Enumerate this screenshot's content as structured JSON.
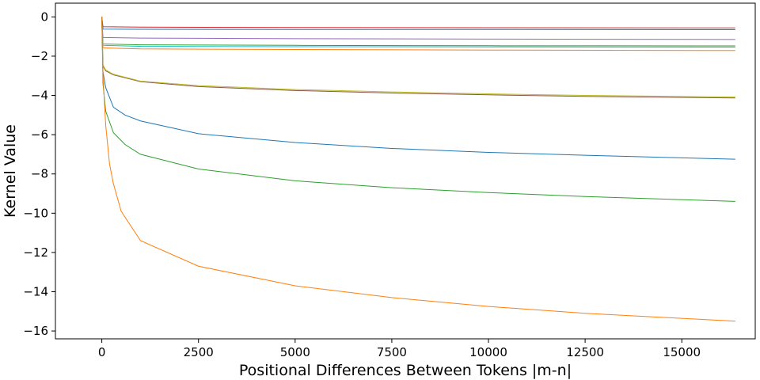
{
  "chart_data": {
    "type": "line",
    "title": "",
    "xlabel": "Positional Differences Between Tokens |m-n|",
    "ylabel": "Kernel Value",
    "xlim": [
      -1200,
      16900
    ],
    "ylim": [
      -16.4,
      0.7
    ],
    "xticks": [
      0,
      2500,
      5000,
      7500,
      10000,
      12500,
      15000
    ],
    "yticks": [
      0,
      -2,
      -4,
      -6,
      -8,
      -10,
      -12,
      -14,
      -16
    ],
    "grid": false,
    "legend": "none",
    "series": [
      {
        "color": "#d62728",
        "points": [
          [
            0,
            0
          ],
          [
            30,
            -0.5
          ],
          [
            1000,
            -0.52
          ],
          [
            5000,
            -0.54
          ],
          [
            10000,
            -0.55
          ],
          [
            16384,
            -0.56
          ]
        ]
      },
      {
        "color": "#1f77b4",
        "points": [
          [
            0,
            0
          ],
          [
            30,
            -0.62
          ],
          [
            1000,
            -0.63
          ],
          [
            5000,
            -0.64
          ],
          [
            10000,
            -0.64
          ],
          [
            16384,
            -0.65
          ]
        ]
      },
      {
        "color": "#9467bd",
        "points": [
          [
            0,
            0
          ],
          [
            30,
            -1.05
          ],
          [
            1000,
            -1.08
          ],
          [
            5000,
            -1.11
          ],
          [
            10000,
            -1.13
          ],
          [
            16384,
            -1.15
          ]
        ]
      },
      {
        "color": "#2ca02c",
        "points": [
          [
            0,
            0
          ],
          [
            30,
            -1.38
          ],
          [
            1000,
            -1.42
          ],
          [
            5000,
            -1.45
          ],
          [
            10000,
            -1.47
          ],
          [
            16384,
            -1.48
          ]
        ]
      },
      {
        "color": "#17becf",
        "points": [
          [
            0,
            0
          ],
          [
            30,
            -1.45
          ],
          [
            1000,
            -1.5
          ],
          [
            5000,
            -1.52
          ],
          [
            10000,
            -1.53
          ],
          [
            16384,
            -1.54
          ]
        ]
      },
      {
        "color": "#ff7f0e",
        "points": [
          [
            0,
            0
          ],
          [
            30,
            -1.58
          ],
          [
            1000,
            -1.63
          ],
          [
            5000,
            -1.66
          ],
          [
            10000,
            -1.69
          ],
          [
            16384,
            -1.71
          ]
        ]
      },
      {
        "color": "#8c564b",
        "points": [
          [
            0,
            0
          ],
          [
            30,
            -2.5
          ],
          [
            100,
            -2.75
          ],
          [
            300,
            -2.95
          ],
          [
            1000,
            -3.3
          ],
          [
            2500,
            -3.55
          ],
          [
            5000,
            -3.75
          ],
          [
            7500,
            -3.88
          ],
          [
            10000,
            -3.97
          ],
          [
            12500,
            -4.05
          ],
          [
            16384,
            -4.13
          ]
        ]
      },
      {
        "color": "#bcbd22",
        "points": [
          [
            0,
            0
          ],
          [
            30,
            -2.45
          ],
          [
            100,
            -2.7
          ],
          [
            300,
            -2.92
          ],
          [
            1000,
            -3.27
          ],
          [
            2500,
            -3.5
          ],
          [
            5000,
            -3.7
          ],
          [
            7500,
            -3.82
          ],
          [
            10000,
            -3.92
          ],
          [
            12500,
            -4.0
          ],
          [
            16384,
            -4.08
          ]
        ]
      },
      {
        "color": "#1f77b4",
        "points": [
          [
            0,
            0
          ],
          [
            30,
            -2.8
          ],
          [
            100,
            -3.6
          ],
          [
            300,
            -4.6
          ],
          [
            600,
            -5.0
          ],
          [
            1000,
            -5.3
          ],
          [
            2500,
            -5.95
          ],
          [
            5000,
            -6.4
          ],
          [
            7500,
            -6.7
          ],
          [
            10000,
            -6.9
          ],
          [
            12500,
            -7.05
          ],
          [
            16384,
            -7.25
          ]
        ]
      },
      {
        "color": "#2ca02c",
        "points": [
          [
            0,
            0
          ],
          [
            30,
            -3.4
          ],
          [
            100,
            -4.8
          ],
          [
            300,
            -5.9
          ],
          [
            600,
            -6.5
          ],
          [
            1000,
            -7.0
          ],
          [
            2500,
            -7.75
          ],
          [
            5000,
            -8.35
          ],
          [
            7500,
            -8.7
          ],
          [
            10000,
            -8.95
          ],
          [
            12500,
            -9.15
          ],
          [
            16384,
            -9.4
          ]
        ]
      },
      {
        "color": "#ff7f0e",
        "points": [
          [
            0,
            0
          ],
          [
            30,
            -3.0
          ],
          [
            100,
            -5.5
          ],
          [
            200,
            -7.5
          ],
          [
            300,
            -8.5
          ],
          [
            500,
            -9.9
          ],
          [
            1000,
            -11.4
          ],
          [
            2500,
            -12.7
          ],
          [
            5000,
            -13.7
          ],
          [
            7500,
            -14.3
          ],
          [
            10000,
            -14.75
          ],
          [
            12500,
            -15.1
          ],
          [
            16384,
            -15.5
          ]
        ]
      }
    ]
  }
}
